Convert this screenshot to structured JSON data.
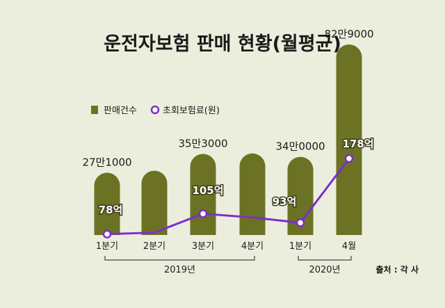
{
  "chart_data": {
    "type": "bar",
    "title": "운전자보험 판매 현황(월평균)",
    "categories": [
      "1분기",
      "2분기",
      "3분기",
      "4분기",
      "1분기",
      "4월"
    ],
    "groups": [
      {
        "label": "2019년",
        "from": 0,
        "to": 3
      },
      {
        "label": "2020년",
        "from": 4,
        "to": 5
      }
    ],
    "series": [
      {
        "name": "판매건수",
        "type": "bar",
        "values": [
          271000,
          280000,
          353000,
          355000,
          340000,
          829000
        ],
        "labels": [
          "27만1000",
          "",
          "35만3000",
          "",
          "34만0000",
          "82만9000"
        ]
      },
      {
        "name": "초회보험료(원)",
        "type": "line",
        "values": [
          78,
          80,
          105,
          100,
          93,
          178
        ],
        "labels": [
          "78억",
          "",
          "105억",
          "",
          "93억",
          "178억"
        ]
      }
    ],
    "source": "출처 : 각 사",
    "colors": {
      "bar": "#6b7223",
      "line": "#7b2fc9",
      "background": "#eceedd"
    }
  }
}
